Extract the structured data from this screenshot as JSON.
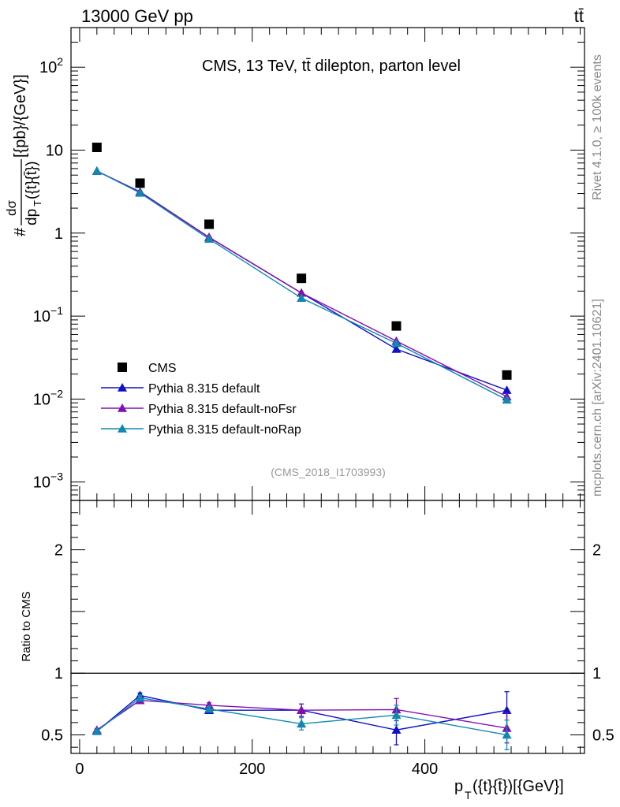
{
  "header": {
    "left": "13000 GeV pp",
    "right": "tt̄"
  },
  "side_labels": {
    "rivet": "Rivet 4.1.0, ≥ 100k events",
    "mcplots": "mcplots.cern.ch [arXiv:2401.10621]"
  },
  "chart_data": [
    {
      "type": "scatter",
      "title": "CMS, 13 TeV, tt̄ dilepton, parton level",
      "analysis_id": "(CMS_2018_I1703993)",
      "ylabel": "#frac{dσ}{dp_T({t}{t̄})}[{pb}/{GeV}]",
      "ylabel_top": "#",
      "ylabel_num": "dσ",
      "ylabel_den": "dp",
      "ylabel_den_sub": "T",
      "ylabel_den_rest": "({t}{t̄})",
      "ylabel_rest": "[{pb}/{GeV}]",
      "yscale": "log",
      "ylim": [
        0.0006,
        300
      ],
      "xlim": [
        -10,
        585
      ],
      "y_ticks": [
        {
          "value": 100,
          "base": "10",
          "exp": "2"
        },
        {
          "value": 10,
          "base": "10",
          "exp": ""
        },
        {
          "value": 1,
          "base": "1",
          "exp": ""
        },
        {
          "value": 0.1,
          "base": "10",
          "exp": "−1"
        },
        {
          "value": 0.01,
          "base": "10",
          "exp": "−2"
        },
        {
          "value": 0.001,
          "base": "10",
          "exp": "−3"
        }
      ],
      "legend_position": "lower-left",
      "x": [
        20,
        70,
        150,
        257,
        367,
        495
      ],
      "series": [
        {
          "name": "CMS",
          "color": "#000000",
          "marker": "square",
          "values": [
            10.8,
            4.0,
            1.28,
            0.285,
            0.076,
            0.0195
          ]
        },
        {
          "name": "Pythia 8.315 default",
          "color": "#1010c8",
          "marker": "triangle",
          "values": [
            5.6,
            3.15,
            0.89,
            0.19,
            0.04,
            0.0128
          ]
        },
        {
          "name": "Pythia 8.315 default-noFsr",
          "color": "#8010b0",
          "marker": "triangle",
          "values": [
            5.6,
            3.1,
            0.89,
            0.19,
            0.05,
            0.0107
          ]
        },
        {
          "name": "Pythia 8.315 default-noRap",
          "color": "#1088b0",
          "marker": "triangle",
          "values": [
            5.6,
            3.05,
            0.85,
            0.165,
            0.047,
            0.0098
          ]
        }
      ]
    },
    {
      "type": "line",
      "ylabel": "Ratio to CMS",
      "xlabel_main": "p",
      "xlabel_sub": "T",
      "xlabel_rest": "({t}{t̄})[{GeV}]",
      "xlim": [
        -10,
        585
      ],
      "ylim": [
        0.35,
        2.4
      ],
      "x_ticks": [
        0,
        200,
        400
      ],
      "y_ticks": [
        0.5,
        1,
        2
      ],
      "x": [
        20,
        70,
        150,
        257,
        367,
        495
      ],
      "reference": 1,
      "series": [
        {
          "name": "Pythia 8.315 default",
          "color": "#1010c8",
          "values": [
            0.53,
            0.82,
            0.7,
            0.7,
            0.54,
            0.7
          ],
          "err": [
            0.01,
            0.02,
            0.02,
            0.05,
            0.12,
            0.15
          ]
        },
        {
          "name": "Pythia 8.315 default-noFsr",
          "color": "#8010b0",
          "values": [
            0.54,
            0.78,
            0.74,
            0.7,
            0.705,
            0.555
          ],
          "err": [
            0.01,
            0.02,
            0.02,
            0.05,
            0.09,
            0.12
          ]
        },
        {
          "name": "Pythia 8.315 default-noRap",
          "color": "#1088b0",
          "values": [
            0.53,
            0.8,
            0.71,
            0.59,
            0.66,
            0.5
          ],
          "err": [
            0.01,
            0.02,
            0.02,
            0.05,
            0.08,
            0.12
          ]
        }
      ]
    }
  ]
}
